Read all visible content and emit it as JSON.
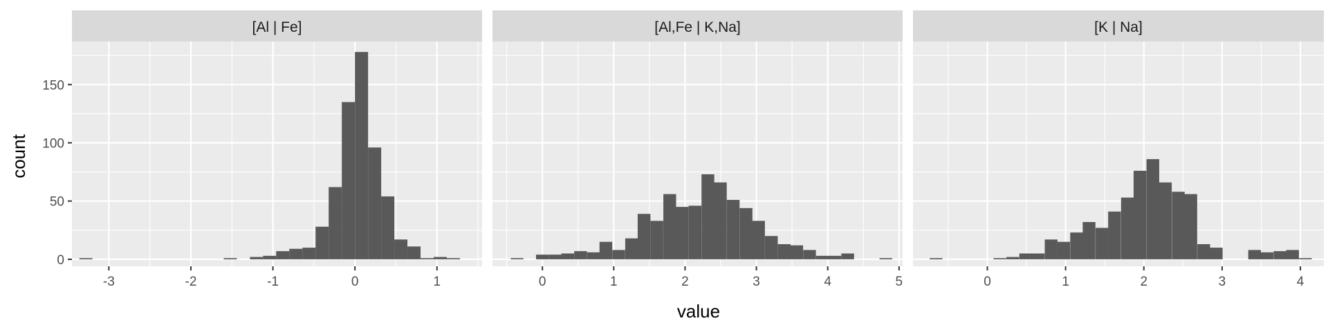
{
  "chart_data": {
    "type": "bar",
    "xlabel": "value",
    "ylabel": "count",
    "ylim": [
      -6,
      187
    ],
    "y_ticks": [
      0,
      50,
      100,
      150
    ],
    "y_tick_labels": [
      "0",
      "50",
      "100",
      "150"
    ],
    "grid": true,
    "bar_color": "#595959",
    "panel_color": "#ebebeb",
    "strip_color": "#d9d9d9",
    "facets": [
      {
        "label": "[Al | Fe]",
        "xlim": [
          -3.45,
          1.55
        ],
        "x_ticks": [
          -3,
          -2,
          -1,
          0,
          1
        ],
        "x_tick_labels": [
          "-3",
          "-2",
          "-1",
          "0",
          "1"
        ],
        "bin_width": 0.16,
        "bins": [
          {
            "x": -3.28,
            "count": 1
          },
          {
            "x": -1.52,
            "count": 1
          },
          {
            "x": -1.2,
            "count": 2
          },
          {
            "x": -1.04,
            "count": 3
          },
          {
            "x": -0.88,
            "count": 7
          },
          {
            "x": -0.72,
            "count": 9
          },
          {
            "x": -0.56,
            "count": 10
          },
          {
            "x": -0.4,
            "count": 28
          },
          {
            "x": -0.24,
            "count": 62
          },
          {
            "x": -0.08,
            "count": 135
          },
          {
            "x": 0.08,
            "count": 178
          },
          {
            "x": 0.24,
            "count": 96
          },
          {
            "x": 0.4,
            "count": 54
          },
          {
            "x": 0.56,
            "count": 17
          },
          {
            "x": 0.72,
            "count": 11
          },
          {
            "x": 0.88,
            "count": 1
          },
          {
            "x": 1.04,
            "count": 2
          },
          {
            "x": 1.2,
            "count": 1
          }
        ]
      },
      {
        "label": "[Al,Fe | K,Na]",
        "xlim": [
          -0.7,
          5.05
        ],
        "x_ticks": [
          0,
          1,
          2,
          3,
          4,
          5
        ],
        "x_tick_labels": [
          "0",
          "1",
          "2",
          "3",
          "4",
          "5"
        ],
        "bin_width": 0.1785,
        "bins": [
          {
            "x": -0.355,
            "count": 1
          },
          {
            "x": 0.0,
            "count": 4
          },
          {
            "x": 0.18,
            "count": 4
          },
          {
            "x": 0.355,
            "count": 5
          },
          {
            "x": 0.535,
            "count": 7
          },
          {
            "x": 0.715,
            "count": 6
          },
          {
            "x": 0.89,
            "count": 15
          },
          {
            "x": 1.07,
            "count": 8
          },
          {
            "x": 1.25,
            "count": 18
          },
          {
            "x": 1.425,
            "count": 39
          },
          {
            "x": 1.605,
            "count": 33
          },
          {
            "x": 1.785,
            "count": 56
          },
          {
            "x": 1.96,
            "count": 45
          },
          {
            "x": 2.14,
            "count": 46
          },
          {
            "x": 2.32,
            "count": 73
          },
          {
            "x": 2.495,
            "count": 66
          },
          {
            "x": 2.675,
            "count": 51
          },
          {
            "x": 2.855,
            "count": 44
          },
          {
            "x": 3.03,
            "count": 33
          },
          {
            "x": 3.21,
            "count": 20
          },
          {
            "x": 3.39,
            "count": 13
          },
          {
            "x": 3.565,
            "count": 12
          },
          {
            "x": 3.745,
            "count": 8
          },
          {
            "x": 3.925,
            "count": 3
          },
          {
            "x": 4.1,
            "count": 3
          },
          {
            "x": 4.28,
            "count": 5
          },
          {
            "x": 4.815,
            "count": 1
          }
        ]
      },
      {
        "label": "[K | Na]",
        "xlim": [
          -0.95,
          4.3
        ],
        "x_ticks": [
          0,
          1,
          2,
          3,
          4
        ],
        "x_tick_labels": [
          "0",
          "1",
          "2",
          "3",
          "4"
        ],
        "bin_width": 0.1625,
        "bins": [
          {
            "x": -0.655,
            "count": 1
          },
          {
            "x": 0.16,
            "count": 1
          },
          {
            "x": 0.325,
            "count": 2
          },
          {
            "x": 0.49,
            "count": 5
          },
          {
            "x": 0.65,
            "count": 5
          },
          {
            "x": 0.815,
            "count": 17
          },
          {
            "x": 0.975,
            "count": 15
          },
          {
            "x": 1.14,
            "count": 23
          },
          {
            "x": 1.3,
            "count": 32
          },
          {
            "x": 1.465,
            "count": 27
          },
          {
            "x": 1.625,
            "count": 41
          },
          {
            "x": 1.79,
            "count": 53
          },
          {
            "x": 1.95,
            "count": 76
          },
          {
            "x": 2.115,
            "count": 86
          },
          {
            "x": 2.275,
            "count": 66
          },
          {
            "x": 2.44,
            "count": 58
          },
          {
            "x": 2.6,
            "count": 56
          },
          {
            "x": 2.765,
            "count": 13
          },
          {
            "x": 2.925,
            "count": 10
          },
          {
            "x": 3.415,
            "count": 8
          },
          {
            "x": 3.575,
            "count": 6
          },
          {
            "x": 3.74,
            "count": 7
          },
          {
            "x": 3.9,
            "count": 8
          },
          {
            "x": 4.065,
            "count": 1
          }
        ]
      }
    ]
  }
}
